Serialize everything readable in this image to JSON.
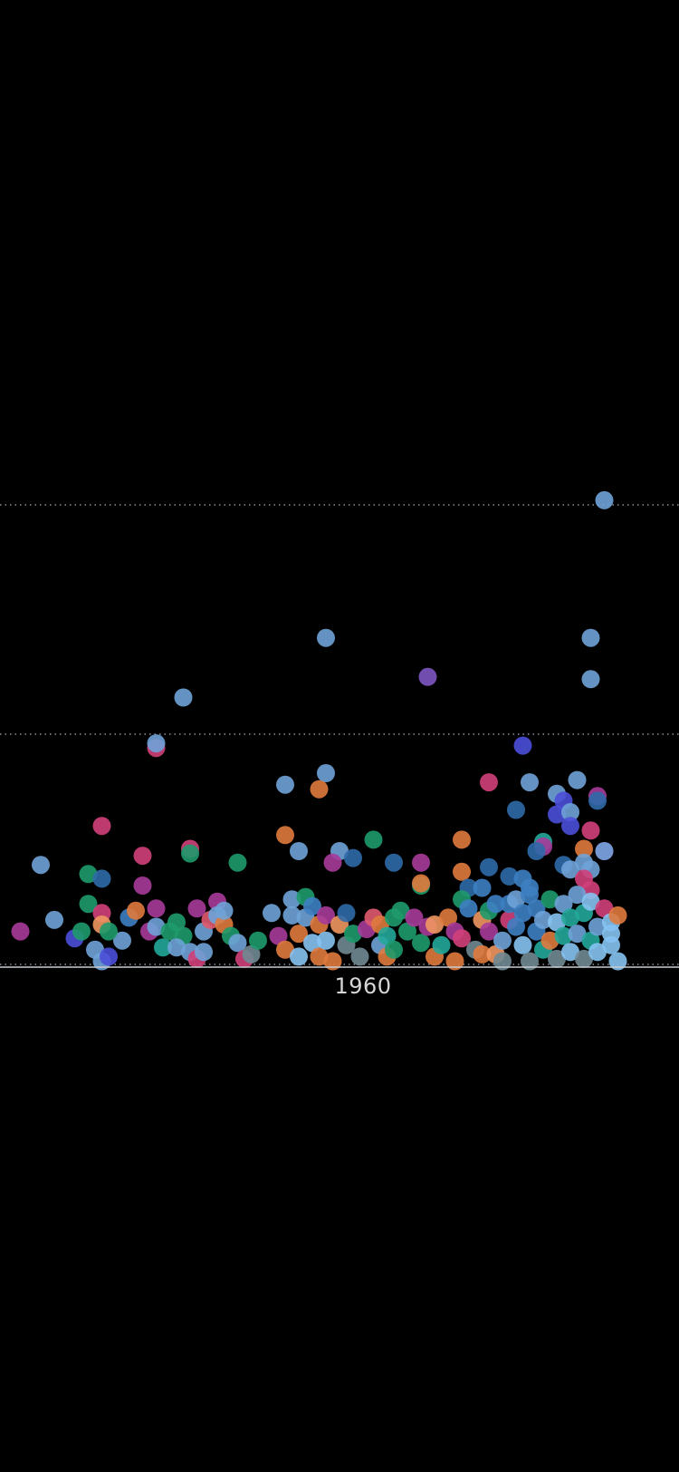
{
  "chart_data": {
    "type": "scatter",
    "title": "",
    "xlabel": "",
    "ylabel": "",
    "x_tick_label": "1960",
    "grid": true,
    "legend": "none",
    "y_gridlines": [
      0,
      1,
      2
    ],
    "ylim": [
      0,
      2.06
    ],
    "colors": {
      "background": "#000000",
      "gridline": "#8a8f99",
      "baseline": "#c8ccd2",
      "axis_text": "#d6d6d6",
      "light_blue": "#6fa3d8",
      "sky_blue": "#86c3f2",
      "steel_blue": "#3d7fc2",
      "dark_blue": "#2f6aa8",
      "indigo": "#4b4fd8",
      "purple": "#7d55c2",
      "magenta": "#a73b9a",
      "pink": "#d0407a",
      "rose": "#e05a6e",
      "orange": "#e07a3e",
      "light_orange": "#ef9660",
      "green": "#1e9a6c",
      "teal": "#22a89a",
      "gray": "#708a94"
    },
    "points": [
      {
        "x": 0.89,
        "y": 2.02,
        "color": "light_blue"
      },
      {
        "x": 0.48,
        "y": 1.42,
        "color": "light_blue"
      },
      {
        "x": 0.87,
        "y": 1.42,
        "color": "light_blue"
      },
      {
        "x": 0.63,
        "y": 1.25,
        "color": "purple"
      },
      {
        "x": 0.87,
        "y": 1.24,
        "color": "light_blue"
      },
      {
        "x": 0.27,
        "y": 1.16,
        "color": "light_blue"
      },
      {
        "x": 0.23,
        "y": 0.94,
        "color": "pink"
      },
      {
        "x": 0.23,
        "y": 0.96,
        "color": "light_blue"
      },
      {
        "x": 0.77,
        "y": 0.95,
        "color": "indigo"
      },
      {
        "x": 0.48,
        "y": 0.83,
        "color": "light_blue"
      },
      {
        "x": 0.42,
        "y": 0.78,
        "color": "light_blue"
      },
      {
        "x": 0.47,
        "y": 0.76,
        "color": "orange"
      },
      {
        "x": 0.72,
        "y": 0.79,
        "color": "pink"
      },
      {
        "x": 0.78,
        "y": 0.79,
        "color": "light_blue"
      },
      {
        "x": 0.85,
        "y": 0.8,
        "color": "light_blue"
      },
      {
        "x": 0.82,
        "y": 0.74,
        "color": "light_blue"
      },
      {
        "x": 0.83,
        "y": 0.71,
        "color": "indigo"
      },
      {
        "x": 0.88,
        "y": 0.73,
        "color": "magenta"
      },
      {
        "x": 0.88,
        "y": 0.71,
        "color": "dark_blue"
      },
      {
        "x": 0.76,
        "y": 0.67,
        "color": "dark_blue"
      },
      {
        "x": 0.82,
        "y": 0.65,
        "color": "indigo"
      },
      {
        "x": 0.84,
        "y": 0.66,
        "color": "light_blue"
      },
      {
        "x": 0.84,
        "y": 0.6,
        "color": "indigo"
      },
      {
        "x": 0.87,
        "y": 0.58,
        "color": "pink"
      },
      {
        "x": 0.15,
        "y": 0.6,
        "color": "pink"
      },
      {
        "x": 0.42,
        "y": 0.56,
        "color": "orange"
      },
      {
        "x": 0.55,
        "y": 0.54,
        "color": "green"
      },
      {
        "x": 0.68,
        "y": 0.54,
        "color": "orange"
      },
      {
        "x": 0.8,
        "y": 0.53,
        "color": "teal"
      },
      {
        "x": 0.8,
        "y": 0.51,
        "color": "magenta"
      },
      {
        "x": 0.79,
        "y": 0.49,
        "color": "dark_blue"
      },
      {
        "x": 0.86,
        "y": 0.5,
        "color": "orange"
      },
      {
        "x": 0.89,
        "y": 0.49,
        "color": "magenta"
      },
      {
        "x": 0.89,
        "y": 0.49,
        "color": "light_blue"
      },
      {
        "x": 0.44,
        "y": 0.49,
        "color": "light_blue"
      },
      {
        "x": 0.5,
        "y": 0.49,
        "color": "light_blue"
      },
      {
        "x": 0.52,
        "y": 0.46,
        "color": "dark_blue"
      },
      {
        "x": 0.21,
        "y": 0.47,
        "color": "pink"
      },
      {
        "x": 0.28,
        "y": 0.5,
        "color": "pink"
      },
      {
        "x": 0.28,
        "y": 0.48,
        "color": "green"
      },
      {
        "x": 0.35,
        "y": 0.44,
        "color": "green"
      },
      {
        "x": 0.06,
        "y": 0.43,
        "color": "light_blue"
      },
      {
        "x": 0.13,
        "y": 0.39,
        "color": "green"
      },
      {
        "x": 0.15,
        "y": 0.37,
        "color": "dark_blue"
      },
      {
        "x": 0.21,
        "y": 0.34,
        "color": "magenta"
      },
      {
        "x": 0.49,
        "y": 0.44,
        "color": "magenta"
      },
      {
        "x": 0.58,
        "y": 0.44,
        "color": "dark_blue"
      },
      {
        "x": 0.62,
        "y": 0.44,
        "color": "magenta"
      },
      {
        "x": 0.68,
        "y": 0.4,
        "color": "orange"
      },
      {
        "x": 0.72,
        "y": 0.42,
        "color": "dark_blue"
      },
      {
        "x": 0.75,
        "y": 0.38,
        "color": "dark_blue"
      },
      {
        "x": 0.83,
        "y": 0.43,
        "color": "dark_blue"
      },
      {
        "x": 0.84,
        "y": 0.41,
        "color": "light_blue"
      },
      {
        "x": 0.86,
        "y": 0.44,
        "color": "light_blue"
      },
      {
        "x": 0.87,
        "y": 0.41,
        "color": "light_blue"
      },
      {
        "x": 0.86,
        "y": 0.37,
        "color": "pink"
      },
      {
        "x": 0.87,
        "y": 0.32,
        "color": "pink"
      },
      {
        "x": 0.62,
        "y": 0.34,
        "color": "green"
      },
      {
        "x": 0.62,
        "y": 0.35,
        "color": "orange"
      },
      {
        "x": 0.69,
        "y": 0.33,
        "color": "dark_blue"
      },
      {
        "x": 0.71,
        "y": 0.33,
        "color": "steel_blue"
      },
      {
        "x": 0.77,
        "y": 0.37,
        "color": "steel_blue"
      },
      {
        "x": 0.78,
        "y": 0.33,
        "color": "steel_blue"
      },
      {
        "x": 0.03,
        "y": 0.14,
        "color": "magenta"
      },
      {
        "x": 0.08,
        "y": 0.19,
        "color": "light_blue"
      },
      {
        "x": 0.11,
        "y": 0.11,
        "color": "indigo"
      },
      {
        "x": 0.13,
        "y": 0.26,
        "color": "green"
      },
      {
        "x": 0.15,
        "y": 0.22,
        "color": "pink"
      },
      {
        "x": 0.15,
        "y": 0.17,
        "color": "light_orange"
      },
      {
        "x": 0.14,
        "y": 0.06,
        "color": "light_blue"
      },
      {
        "x": 0.15,
        "y": 0.01,
        "color": "light_blue"
      },
      {
        "x": 0.16,
        "y": 0.03,
        "color": "indigo"
      },
      {
        "x": 0.18,
        "y": 0.1,
        "color": "light_blue"
      },
      {
        "x": 0.19,
        "y": 0.2,
        "color": "steel_blue"
      },
      {
        "x": 0.2,
        "y": 0.23,
        "color": "orange"
      },
      {
        "x": 0.12,
        "y": 0.14,
        "color": "green"
      },
      {
        "x": 0.16,
        "y": 0.14,
        "color": "green"
      },
      {
        "x": 0.22,
        "y": 0.14,
        "color": "magenta"
      },
      {
        "x": 0.23,
        "y": 0.24,
        "color": "magenta"
      },
      {
        "x": 0.23,
        "y": 0.16,
        "color": "light_blue"
      },
      {
        "x": 0.24,
        "y": 0.07,
        "color": "teal"
      },
      {
        "x": 0.25,
        "y": 0.14,
        "color": "green"
      },
      {
        "x": 0.26,
        "y": 0.18,
        "color": "green"
      },
      {
        "x": 0.27,
        "y": 0.12,
        "color": "green"
      },
      {
        "x": 0.26,
        "y": 0.07,
        "color": "light_blue"
      },
      {
        "x": 0.28,
        "y": 0.05,
        "color": "light_blue"
      },
      {
        "x": 0.29,
        "y": 0.24,
        "color": "magenta"
      },
      {
        "x": 0.29,
        "y": 0.02,
        "color": "pink"
      },
      {
        "x": 0.3,
        "y": 0.14,
        "color": "light_blue"
      },
      {
        "x": 0.3,
        "y": 0.05,
        "color": "light_blue"
      },
      {
        "x": 0.31,
        "y": 0.19,
        "color": "rose"
      },
      {
        "x": 0.32,
        "y": 0.27,
        "color": "magenta"
      },
      {
        "x": 0.32,
        "y": 0.21,
        "color": "light_blue"
      },
      {
        "x": 0.33,
        "y": 0.17,
        "color": "orange"
      },
      {
        "x": 0.33,
        "y": 0.23,
        "color": "light_blue"
      },
      {
        "x": 0.34,
        "y": 0.12,
        "color": "green"
      },
      {
        "x": 0.35,
        "y": 0.09,
        "color": "light_blue"
      },
      {
        "x": 0.36,
        "y": 0.02,
        "color": "pink"
      },
      {
        "x": 0.37,
        "y": 0.04,
        "color": "gray"
      },
      {
        "x": 0.38,
        "y": 0.1,
        "color": "green"
      },
      {
        "x": 0.4,
        "y": 0.22,
        "color": "light_blue"
      },
      {
        "x": 0.41,
        "y": 0.12,
        "color": "magenta"
      },
      {
        "x": 0.42,
        "y": 0.06,
        "color": "orange"
      },
      {
        "x": 0.43,
        "y": 0.21,
        "color": "light_blue"
      },
      {
        "x": 0.43,
        "y": 0.28,
        "color": "light_blue"
      },
      {
        "x": 0.44,
        "y": 0.13,
        "color": "orange"
      },
      {
        "x": 0.44,
        "y": 0.03,
        "color": "sky_blue"
      },
      {
        "x": 0.45,
        "y": 0.2,
        "color": "light_blue"
      },
      {
        "x": 0.45,
        "y": 0.29,
        "color": "green"
      },
      {
        "x": 0.46,
        "y": 0.25,
        "color": "steel_blue"
      },
      {
        "x": 0.46,
        "y": 0.09,
        "color": "sky_blue"
      },
      {
        "x": 0.47,
        "y": 0.17,
        "color": "orange"
      },
      {
        "x": 0.47,
        "y": 0.03,
        "color": "orange"
      },
      {
        "x": 0.48,
        "y": 0.21,
        "color": "magenta"
      },
      {
        "x": 0.48,
        "y": 0.1,
        "color": "sky_blue"
      },
      {
        "x": 0.49,
        "y": 0.01,
        "color": "orange"
      },
      {
        "x": 0.5,
        "y": 0.17,
        "color": "light_orange"
      },
      {
        "x": 0.51,
        "y": 0.08,
        "color": "gray"
      },
      {
        "x": 0.51,
        "y": 0.22,
        "color": "dark_blue"
      },
      {
        "x": 0.52,
        "y": 0.13,
        "color": "green"
      },
      {
        "x": 0.53,
        "y": 0.03,
        "color": "gray"
      },
      {
        "x": 0.54,
        "y": 0.15,
        "color": "magenta"
      },
      {
        "x": 0.55,
        "y": 0.2,
        "color": "rose"
      },
      {
        "x": 0.56,
        "y": 0.08,
        "color": "light_blue"
      },
      {
        "x": 0.56,
        "y": 0.17,
        "color": "orange"
      },
      {
        "x": 0.57,
        "y": 0.03,
        "color": "orange"
      },
      {
        "x": 0.57,
        "y": 0.12,
        "color": "teal"
      },
      {
        "x": 0.58,
        "y": 0.2,
        "color": "green"
      },
      {
        "x": 0.58,
        "y": 0.06,
        "color": "green"
      },
      {
        "x": 0.59,
        "y": 0.23,
        "color": "green"
      },
      {
        "x": 0.6,
        "y": 0.14,
        "color": "green"
      },
      {
        "x": 0.61,
        "y": 0.2,
        "color": "magenta"
      },
      {
        "x": 0.62,
        "y": 0.09,
        "color": "green"
      },
      {
        "x": 0.63,
        "y": 0.16,
        "color": "magenta"
      },
      {
        "x": 0.64,
        "y": 0.03,
        "color": "orange"
      },
      {
        "x": 0.64,
        "y": 0.17,
        "color": "light_orange"
      },
      {
        "x": 0.65,
        "y": 0.08,
        "color": "teal"
      },
      {
        "x": 0.66,
        "y": 0.2,
        "color": "orange"
      },
      {
        "x": 0.67,
        "y": 0.01,
        "color": "orange"
      },
      {
        "x": 0.67,
        "y": 0.14,
        "color": "magenta"
      },
      {
        "x": 0.68,
        "y": 0.28,
        "color": "green"
      },
      {
        "x": 0.68,
        "y": 0.11,
        "color": "pink"
      },
      {
        "x": 0.69,
        "y": 0.24,
        "color": "steel_blue"
      },
      {
        "x": 0.7,
        "y": 0.06,
        "color": "gray"
      },
      {
        "x": 0.71,
        "y": 0.19,
        "color": "light_orange"
      },
      {
        "x": 0.71,
        "y": 0.04,
        "color": "orange"
      },
      {
        "x": 0.72,
        "y": 0.14,
        "color": "magenta"
      },
      {
        "x": 0.72,
        "y": 0.23,
        "color": "green"
      },
      {
        "x": 0.73,
        "y": 0.04,
        "color": "light_orange"
      },
      {
        "x": 0.73,
        "y": 0.26,
        "color": "steel_blue"
      },
      {
        "x": 0.74,
        "y": 0.1,
        "color": "light_blue"
      },
      {
        "x": 0.74,
        "y": 0.01,
        "color": "gray"
      },
      {
        "x": 0.75,
        "y": 0.19,
        "color": "pink"
      },
      {
        "x": 0.75,
        "y": 0.26,
        "color": "steel_blue"
      },
      {
        "x": 0.76,
        "y": 0.16,
        "color": "steel_blue"
      },
      {
        "x": 0.76,
        "y": 0.28,
        "color": "light_blue"
      },
      {
        "x": 0.77,
        "y": 0.08,
        "color": "sky_blue"
      },
      {
        "x": 0.77,
        "y": 0.22,
        "color": "steel_blue"
      },
      {
        "x": 0.78,
        "y": 0.01,
        "color": "gray"
      },
      {
        "x": 0.78,
        "y": 0.3,
        "color": "steel_blue"
      },
      {
        "x": 0.79,
        "y": 0.14,
        "color": "steel_blue"
      },
      {
        "x": 0.79,
        "y": 0.24,
        "color": "steel_blue"
      },
      {
        "x": 0.8,
        "y": 0.06,
        "color": "teal"
      },
      {
        "x": 0.8,
        "y": 0.19,
        "color": "light_blue"
      },
      {
        "x": 0.81,
        "y": 0.1,
        "color": "orange"
      },
      {
        "x": 0.81,
        "y": 0.28,
        "color": "green"
      },
      {
        "x": 0.82,
        "y": 0.02,
        "color": "gray"
      },
      {
        "x": 0.82,
        "y": 0.18,
        "color": "sky_blue"
      },
      {
        "x": 0.83,
        "y": 0.26,
        "color": "light_blue"
      },
      {
        "x": 0.83,
        "y": 0.12,
        "color": "teal"
      },
      {
        "x": 0.84,
        "y": 0.05,
        "color": "sky_blue"
      },
      {
        "x": 0.84,
        "y": 0.2,
        "color": "teal"
      },
      {
        "x": 0.85,
        "y": 0.3,
        "color": "light_blue"
      },
      {
        "x": 0.85,
        "y": 0.13,
        "color": "light_blue"
      },
      {
        "x": 0.86,
        "y": 0.02,
        "color": "gray"
      },
      {
        "x": 0.86,
        "y": 0.22,
        "color": "teal"
      },
      {
        "x": 0.87,
        "y": 0.1,
        "color": "teal"
      },
      {
        "x": 0.87,
        "y": 0.27,
        "color": "sky_blue"
      },
      {
        "x": 0.88,
        "y": 0.16,
        "color": "light_blue"
      },
      {
        "x": 0.88,
        "y": 0.05,
        "color": "sky_blue"
      },
      {
        "x": 0.89,
        "y": 0.24,
        "color": "pink"
      },
      {
        "x": 0.9,
        "y": 0.18,
        "color": "sky_blue"
      },
      {
        "x": 0.9,
        "y": 0.08,
        "color": "sky_blue"
      },
      {
        "x": 0.91,
        "y": 0.21,
        "color": "orange"
      },
      {
        "x": 0.91,
        "y": 0.01,
        "color": "sky_blue"
      },
      {
        "x": 0.9,
        "y": 0.13,
        "color": "sky_blue"
      }
    ]
  }
}
